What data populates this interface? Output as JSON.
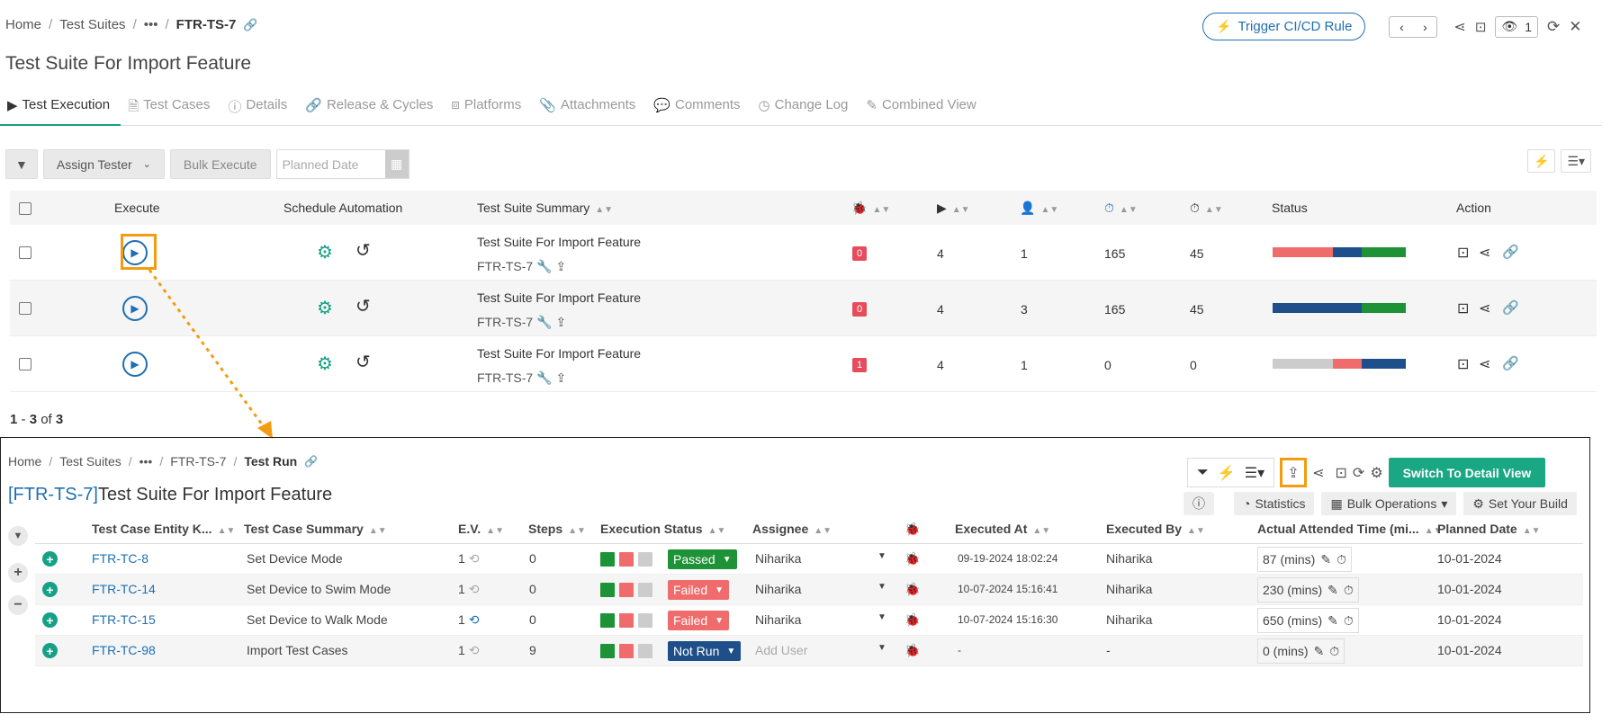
{
  "top_breadcrumb": {
    "home": "Home",
    "suites": "Test Suites",
    "more": "•••",
    "current": "FTR-TS-7"
  },
  "top_title": "Test Suite For Import Feature",
  "top_actions": {
    "trigger": "Trigger CI/CD Rule",
    "watch_count": "1"
  },
  "tabs": [
    "Test Execution",
    "Test Cases",
    "Details",
    "Release & Cycles",
    "Platforms",
    "Attachments",
    "Comments",
    "Change Log",
    "Combined View"
  ],
  "toolbar": {
    "assign": "Assign Tester",
    "bulk": "Bulk Execute",
    "planned_placeholder": "Planned Date"
  },
  "table1": {
    "headers": {
      "execute": "Execute",
      "schedule": "Schedule Automation",
      "summary": "Test Suite Summary",
      "status": "Status",
      "action": "Action"
    },
    "rows": [
      {
        "summary": "Test Suite For Import Feature",
        "key": "FTR-TS-7",
        "bugs": "0",
        "runs": "4",
        "users": "1",
        "t1": "165",
        "t2": "45",
        "bar": [
          {
            "c": "#f06b6b",
            "p": 45
          },
          {
            "c": "#1f4f8a",
            "p": 22
          },
          {
            "c": "#1e9236",
            "p": 33
          }
        ]
      },
      {
        "summary": "Test Suite For Import Feature",
        "key": "FTR-TS-7",
        "bugs": "0",
        "runs": "4",
        "users": "3",
        "t1": "165",
        "t2": "45",
        "bar": [
          {
            "c": "#1f4f8a",
            "p": 67
          },
          {
            "c": "#1e9236",
            "p": 33
          }
        ]
      },
      {
        "summary": "Test Suite For Import Feature",
        "key": "FTR-TS-7",
        "bugs": "1",
        "runs": "4",
        "users": "1",
        "t1": "0",
        "t2": "0",
        "bar": [
          {
            "c": "#cccccc",
            "p": 45
          },
          {
            "c": "#f06b6b",
            "p": 22
          },
          {
            "c": "#1f4f8a",
            "p": 33
          }
        ]
      }
    ],
    "pagination": {
      "from": "1",
      "to": "3",
      "of": "of",
      "total": "3"
    }
  },
  "lower": {
    "breadcrumb": {
      "home": "Home",
      "suites": "Test Suites",
      "more": "•••",
      "suite": "FTR-TS-7",
      "current": "Test Run"
    },
    "title_key": "[FTR-TS-7]",
    "title": "Test Suite For Import Feature",
    "switch_btn": "Switch To Detail View",
    "stats_btn": "Statistics",
    "bulk_btn": "Bulk Operations",
    "build_btn": "Set Your Build",
    "headers": {
      "key": "Test Case Entity K...",
      "summary": "Test Case Summary",
      "ev": "E.V.",
      "steps": "Steps",
      "exec": "Execution Status",
      "assignee": "Assignee",
      "executed_at": "Executed At",
      "executed_by": "Executed By",
      "time": "Actual Attended Time (mi...",
      "planned": "Planned Date"
    },
    "rows": [
      {
        "key": "FTR-TC-8",
        "summary": "Set Device Mode",
        "ev": "1",
        "steps": "0",
        "status": "Passed",
        "status_color": "#1e9236",
        "assignee": "Niharika",
        "at": "09-19-2024 18:02:24",
        "by": "Niharika",
        "time": "87 (mins)",
        "planned": "10-01-2024"
      },
      {
        "key": "FTR-TC-14",
        "summary": "Set Device to Swim Mode",
        "ev": "1",
        "steps": "0",
        "status": "Failed",
        "status_color": "#f06b6b",
        "assignee": "Niharika",
        "at": "10-07-2024 15:16:41",
        "by": "Niharika",
        "time": "230 (mins)",
        "planned": "10-01-2024"
      },
      {
        "key": "FTR-TC-15",
        "summary": "Set Device to Walk Mode",
        "ev": "1",
        "steps": "0",
        "status": "Failed",
        "status_color": "#f06b6b",
        "assignee": "Niharika",
        "at": "10-07-2024 15:16:30",
        "by": "Niharika",
        "time": "650 (mins)",
        "planned": "10-01-2024"
      },
      {
        "key": "FTR-TC-98",
        "summary": "Import Test Cases",
        "ev": "1",
        "steps": "9",
        "status": "Not Run",
        "status_color": "#1f4f8a",
        "assignee": "Add User",
        "at": "-",
        "by": "-",
        "time": "0 (mins)",
        "planned": "10-01-2024"
      }
    ]
  }
}
